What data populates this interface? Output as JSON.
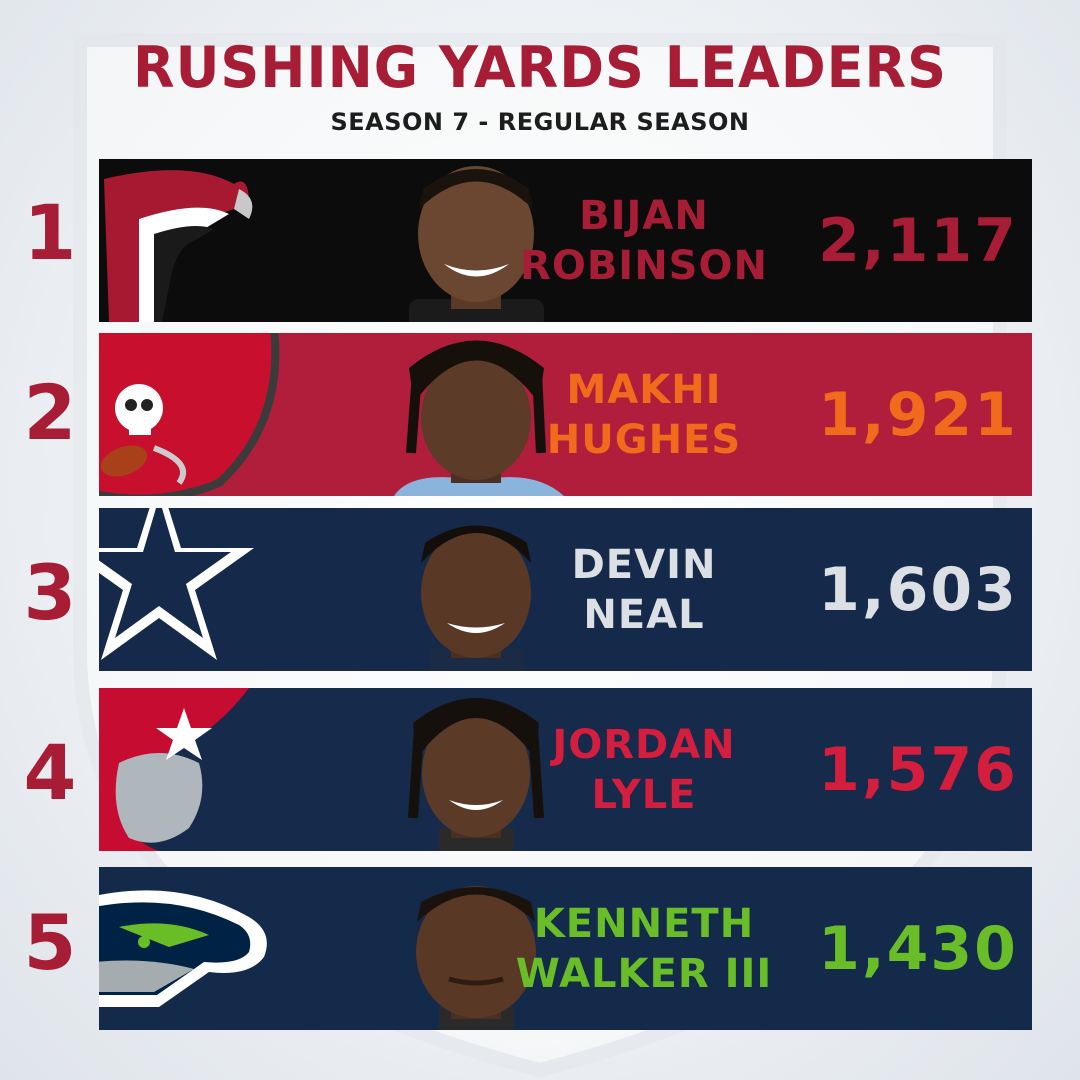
{
  "header": {
    "title": "RUSHING YARDS LEADERS",
    "subtitle": "SEASON 7 - REGULAR SEASON"
  },
  "leaders": [
    {
      "rank": "1",
      "first": "BIJAN",
      "last": "ROBINSON",
      "yards": "2,117",
      "team_icon": "falcons-logo-icon",
      "bg": "#0c0c0c",
      "accent": "#a81d36"
    },
    {
      "rank": "2",
      "first": "MAKHI",
      "last": "HUGHES",
      "yards": "1,921",
      "team_icon": "buccaneers-logo-icon",
      "bg": "#b01e3c",
      "accent": "#f26a1b"
    },
    {
      "rank": "3",
      "first": "DEVIN",
      "last": "NEAL",
      "yards": "1,603",
      "team_icon": "cowboys-star-icon",
      "bg": "#152a4b",
      "accent": "#dcdfe3"
    },
    {
      "rank": "4",
      "first": "JORDAN",
      "last": "LYLE",
      "yards": "1,576",
      "team_icon": "patriots-logo-icon",
      "bg": "#162a4c",
      "accent": "#d31e3d"
    },
    {
      "rank": "5",
      "first": "KENNETH",
      "last": "WALKER III",
      "yards": "1,430",
      "team_icon": "seahawks-logo-icon",
      "bg": "#132a4a",
      "accent": "#69be28"
    }
  ]
}
